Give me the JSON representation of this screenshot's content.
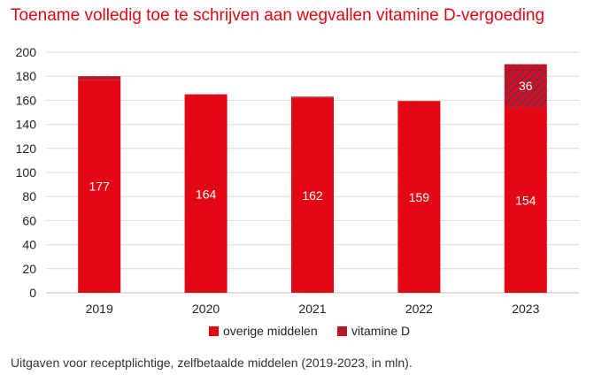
{
  "title": "Toename volledig toe te schrijven aan wegvallen vitamine D-vergoeding",
  "caption": "Uitgaven voor receptplichtige, zelfbetaalde middelen (2019-2023, in mln).",
  "colors": {
    "overige": "#e30613",
    "vitamin_d_base": "#e30613",
    "vitamin_d_stripe": "#3a3f7a",
    "accent": "#e30613"
  },
  "chart_data": {
    "type": "bar",
    "stacked": true,
    "categories": [
      "2019",
      "2020",
      "2021",
      "2022",
      "2023"
    ],
    "series": [
      {
        "name": "overige middelen",
        "values": [
          177,
          164,
          162,
          159,
          154
        ],
        "labels": [
          "177",
          "164",
          "162",
          "159",
          "154"
        ]
      },
      {
        "name": "vitamine D",
        "values": [
          3,
          1,
          1,
          0.5,
          36
        ],
        "labels": [
          "",
          "",
          "",
          "",
          "36"
        ]
      }
    ],
    "ylim": [
      0,
      200
    ],
    "yticks": [
      "0",
      "20",
      "40",
      "60",
      "80",
      "100",
      "120",
      "140",
      "160",
      "180",
      "200"
    ],
    "grid": true,
    "legend": "bottom"
  }
}
